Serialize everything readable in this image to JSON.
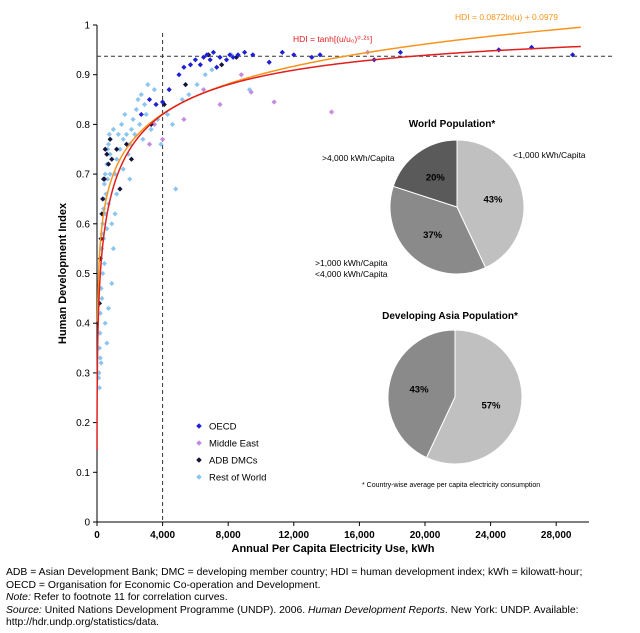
{
  "chart_data": {
    "type": "scatter",
    "xlabel": "Annual Per Capita Electricity Use, kWh",
    "ylabel": "Human Development Index",
    "xlim": [
      0,
      30000
    ],
    "ylim": [
      0,
      1
    ],
    "xticks": [
      0,
      4000,
      8000,
      12000,
      16000,
      20000,
      24000,
      28000
    ],
    "xtick_labels": [
      "0",
      "4,000",
      "8,000",
      "12,000",
      "16,000",
      "20,000",
      "24,000",
      "28,000"
    ],
    "yticks": [
      0,
      0.1,
      0.2,
      0.3,
      0.4,
      0.5,
      0.6,
      0.7,
      0.8,
      0.9,
      1
    ],
    "ytick_labels": [
      "0",
      "0.1",
      "0.2",
      "0.3",
      "0.4",
      "0.5",
      "0.6",
      "0.7",
      "0.8",
      "0.9",
      "1"
    ],
    "reference_lines": {
      "vertical_x": 4000,
      "horizontal_y": 0.937
    },
    "legend": [
      "OECD",
      "Middle East",
      "ADB DMCs",
      "Rest of World"
    ],
    "colors": {
      "OECD": "#1f1fd6",
      "Middle East": "#c48be0",
      "ADB DMCs": "#14143c",
      "Rest of World": "#8cc6f0",
      "tanh_curve": "#e0201f",
      "log_curve": "#f7941d"
    },
    "curves": [
      {
        "name": "tanh",
        "label": "HDI = tanh[(u/u₀)⁰·²⁵]",
        "color": "#e0201f"
      },
      {
        "name": "log",
        "label": "HDI = 0.0872ln(u) + 0.0979",
        "color": "#f7941d"
      }
    ],
    "series": [
      {
        "name": "OECD",
        "points": [
          [
            4000,
            0.845
          ],
          [
            4400,
            0.87
          ],
          [
            5000,
            0.9
          ],
          [
            5300,
            0.915
          ],
          [
            5700,
            0.92
          ],
          [
            6000,
            0.93
          ],
          [
            6300,
            0.92
          ],
          [
            6500,
            0.935
          ],
          [
            6700,
            0.94
          ],
          [
            6900,
            0.93
          ],
          [
            7100,
            0.945
          ],
          [
            7300,
            0.915
          ],
          [
            7500,
            0.935
          ],
          [
            7900,
            0.93
          ],
          [
            8100,
            0.94
          ],
          [
            8300,
            0.935
          ],
          [
            8600,
            0.94
          ],
          [
            9000,
            0.945
          ],
          [
            9500,
            0.94
          ],
          [
            10500,
            0.925
          ],
          [
            11300,
            0.945
          ],
          [
            12000,
            0.94
          ],
          [
            13100,
            0.935
          ],
          [
            13600,
            0.94
          ],
          [
            16900,
            0.93
          ],
          [
            18500,
            0.945
          ],
          [
            24500,
            0.95
          ],
          [
            26500,
            0.955
          ],
          [
            29000,
            0.94
          ],
          [
            3200,
            0.85
          ],
          [
            3600,
            0.84
          ],
          [
            2700,
            0.82
          ]
        ]
      },
      {
        "name": "Middle East",
        "points": [
          [
            3200,
            0.76
          ],
          [
            3500,
            0.8
          ],
          [
            4000,
            0.77
          ],
          [
            5300,
            0.81
          ],
          [
            6500,
            0.87
          ],
          [
            7500,
            0.84
          ],
          [
            8800,
            0.9
          ],
          [
            9400,
            0.865
          ],
          [
            10800,
            0.845
          ],
          [
            14300,
            0.825
          ],
          [
            16500,
            0.945
          ]
        ]
      },
      {
        "name": "ADB DMCs",
        "points": [
          [
            200,
            0.53
          ],
          [
            300,
            0.62
          ],
          [
            400,
            0.69
          ],
          [
            500,
            0.75
          ],
          [
            600,
            0.74
          ],
          [
            700,
            0.72
          ],
          [
            900,
            0.73
          ],
          [
            1200,
            0.75
          ],
          [
            1400,
            0.67
          ],
          [
            1800,
            0.76
          ],
          [
            3300,
            0.8
          ],
          [
            4100,
            0.84
          ],
          [
            5400,
            0.88
          ],
          [
            6800,
            0.94
          ],
          [
            7600,
            0.92
          ],
          [
            8500,
            0.935
          ],
          [
            150,
            0.44
          ],
          [
            250,
            0.57
          ],
          [
            350,
            0.65
          ],
          [
            450,
            0.69
          ],
          [
            800,
            0.77
          ],
          [
            2100,
            0.73
          ]
        ]
      },
      {
        "name": "Rest of World",
        "points": [
          [
            100,
            0.29
          ],
          [
            120,
            0.3
          ],
          [
            150,
            0.35
          ],
          [
            180,
            0.38
          ],
          [
            200,
            0.42
          ],
          [
            250,
            0.47
          ],
          [
            280,
            0.55
          ],
          [
            300,
            0.58
          ],
          [
            350,
            0.6
          ],
          [
            400,
            0.63
          ],
          [
            420,
            0.65
          ],
          [
            450,
            0.68
          ],
          [
            500,
            0.7
          ],
          [
            600,
            0.72
          ],
          [
            650,
            0.75
          ],
          [
            700,
            0.76
          ],
          [
            750,
            0.78
          ],
          [
            800,
            0.7
          ],
          [
            900,
            0.6
          ],
          [
            1000,
            0.55
          ],
          [
            1100,
            0.7
          ],
          [
            1200,
            0.73
          ],
          [
            1300,
            0.78
          ],
          [
            1400,
            0.75
          ],
          [
            1500,
            0.8
          ],
          [
            1600,
            0.77
          ],
          [
            1700,
            0.82
          ],
          [
            1800,
            0.78
          ],
          [
            1900,
            0.74
          ],
          [
            2000,
            0.76
          ],
          [
            2100,
            0.79
          ],
          [
            2200,
            0.81
          ],
          [
            2300,
            0.78
          ],
          [
            2400,
            0.83
          ],
          [
            2500,
            0.85
          ],
          [
            2600,
            0.8
          ],
          [
            2700,
            0.86
          ],
          [
            2800,
            0.77
          ],
          [
            2900,
            0.84
          ],
          [
            3000,
            0.82
          ],
          [
            3100,
            0.88
          ],
          [
            3300,
            0.79
          ],
          [
            3500,
            0.87
          ],
          [
            3700,
            0.81
          ],
          [
            3900,
            0.76
          ],
          [
            4300,
            0.82
          ],
          [
            4600,
            0.8
          ],
          [
            4800,
            0.67
          ],
          [
            5200,
            0.85
          ],
          [
            5600,
            0.86
          ],
          [
            6100,
            0.88
          ],
          [
            6600,
            0.9
          ],
          [
            7000,
            0.91
          ],
          [
            8200,
            0.94
          ],
          [
            9300,
            0.87
          ],
          [
            200,
            0.33
          ],
          [
            300,
            0.45
          ],
          [
            350,
            0.5
          ],
          [
            400,
            0.57
          ],
          [
            500,
            0.62
          ],
          [
            550,
            0.66
          ],
          [
            600,
            0.59
          ],
          [
            650,
            0.69
          ],
          [
            700,
            0.64
          ],
          [
            800,
            0.74
          ],
          [
            1000,
            0.79
          ],
          [
            1200,
            0.66
          ],
          [
            1600,
            0.71
          ],
          [
            2000,
            0.69
          ],
          [
            500,
            0.4
          ],
          [
            600,
            0.36
          ],
          [
            700,
            0.43
          ],
          [
            900,
            0.48
          ],
          [
            150,
            0.27
          ],
          [
            250,
            0.32
          ],
          [
            450,
            0.52
          ],
          [
            1100,
            0.62
          ]
        ]
      }
    ],
    "pies": [
      {
        "title": "World Population*",
        "slices": [
          {
            "label": "<1,000 kWh/Capita",
            "value": 43,
            "text": "43%",
            "color": "#c0c0c0"
          },
          {
            "label": ">1,000 kWh/Capita\n<4,000 kWh/Capita",
            "value": 37,
            "text": "37%",
            "color": "#8a8a8a"
          },
          {
            "label": ">4,000 kWh/Capita",
            "value": 20,
            "text": "20%",
            "color": "#5a5a5a"
          }
        ]
      },
      {
        "title": "Developing Asia Population*",
        "slices": [
          {
            "label": "",
            "value": 57,
            "text": "57%",
            "color": "#c0c0c0"
          },
          {
            "label": "",
            "value": 43,
            "text": "43%",
            "color": "#8a8a8a"
          }
        ]
      }
    ],
    "footnote": "* Country-wise average per capita electricity consumption"
  },
  "notes": {
    "line1": "ADB = Asian Development Bank; DMC = developing member country; HDI = human development index; kWh = kilowatt-hour;",
    "line2": "OECD = Organisation for Economic Co-operation and Development.",
    "note_label": "Note:",
    "note_text": " Refer to footnote 11 for correlation curves.",
    "source_label": "Source:",
    "source_text": " United Nations Development Programme (UNDP). 2006. ",
    "source_title": "Human Development Reports",
    "source_text2": ". New York: UNDP. Available:",
    "source_url": "http://hdr.undp.org/statistics/data."
  }
}
